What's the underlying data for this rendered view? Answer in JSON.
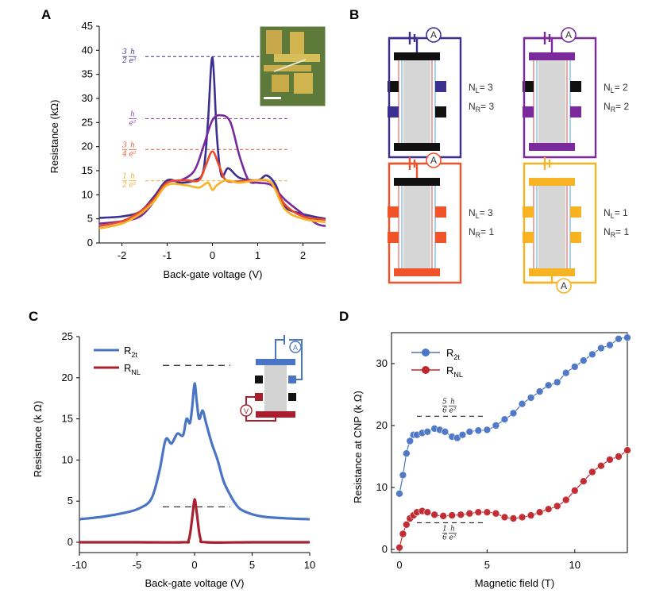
{
  "panels": {
    "A": {
      "label": "A",
      "xlabel": "Back-gate voltage (V)",
      "ylabel": "Resistance (kΩ)",
      "xlim": [
        -2.5,
        2.5
      ],
      "ylim": [
        0,
        45
      ],
      "xticks": [
        "-2",
        "-1",
        "0",
        "1",
        "2"
      ],
      "yticks": [
        "0",
        "5",
        "10",
        "15",
        "20",
        "25",
        "30",
        "35",
        "40",
        "45"
      ],
      "fractions": [
        {
          "num": "3",
          "den": "2",
          "h": "h",
          "e2": "e²",
          "value": 38.7,
          "color": "#3b2f8f"
        },
        {
          "num": "",
          "den": "",
          "h": "h",
          "e2": "e²",
          "value": 25.8,
          "color": "#8e44ad"
        },
        {
          "num": "3",
          "den": "4",
          "h": "h",
          "e2": "e²",
          "value": 19.4,
          "color": "#e8542a"
        },
        {
          "num": "1",
          "den": "2",
          "h": "h",
          "e2": "e²",
          "value": 12.9,
          "color": "#f5a623"
        }
      ]
    },
    "B": {
      "label": "B",
      "devices": [
        {
          "color": "#3b2f8f",
          "meter": "A",
          "nl": "N",
          "nl_sub": "L",
          "nl_val": "= 3",
          "nr": "N",
          "nr_sub": "R",
          "nr_val": "= 3"
        },
        {
          "color": "#7a2a9a",
          "meter": "A",
          "nl": "N",
          "nl_sub": "L",
          "nl_val": "= 2",
          "nr": "N",
          "nr_sub": "R",
          "nr_val": "= 2"
        },
        {
          "color": "#f0522a",
          "meter": "A",
          "nl": "N",
          "nl_sub": "L",
          "nl_val": "= 3",
          "nr": "N",
          "nr_sub": "R",
          "nr_val": "= 1"
        },
        {
          "color": "#f7b324",
          "meter": "A",
          "nl": "N",
          "nl_sub": "L",
          "nl_val": "= 1",
          "nr": "N",
          "nr_sub": "R",
          "nr_val": "= 1"
        }
      ]
    },
    "C": {
      "label": "C",
      "xlabel": "Back-gate voltage (V)",
      "ylabel": "Resistance  (k Ω)",
      "xticks": [
        "-10",
        "-5",
        "0",
        "5",
        "10"
      ],
      "yticks": [
        "0",
        "5",
        "10",
        "15",
        "20",
        "25"
      ],
      "legend": [
        {
          "name": "R",
          "sub": "2t",
          "color": "#4a74c4"
        },
        {
          "name": "R",
          "sub": "NL",
          "color": "#a8202e"
        }
      ],
      "meters": [
        "A",
        "V"
      ]
    },
    "D": {
      "label": "D",
      "xlabel": "Magnetic field (T)",
      "ylabel": "Resistance at CNP  (k Ω)",
      "xticks": [
        "0",
        "5",
        "10"
      ],
      "yticks": [
        "0",
        "10",
        "20",
        "30"
      ],
      "legend": [
        {
          "name": "R",
          "sub": "2t",
          "color": "#4a74c4"
        },
        {
          "name": "R",
          "sub": "NL",
          "color": "#c0262e"
        }
      ],
      "fractions": [
        {
          "num": "5",
          "den": "6",
          "h": "h",
          "e2": "e²",
          "value": 21.5
        },
        {
          "num": "1",
          "den": "6",
          "h": "h",
          "e2": "e²",
          "value": 4.3
        }
      ]
    }
  },
  "chart_data": [
    {
      "type": "line",
      "panel": "A",
      "xlabel": "Back-gate voltage (V)",
      "ylabel": "Resistance (kΩ)",
      "xlim": [
        -2.5,
        2.5
      ],
      "ylim": [
        0,
        45
      ],
      "series": [
        {
          "color": "#3b2f8f",
          "x": [
            -2.5,
            -2.0,
            -1.6,
            -1.3,
            -1.0,
            -0.7,
            -0.4,
            -0.2,
            -0.1,
            0.0,
            0.1,
            0.2,
            0.35,
            0.6,
            1.0,
            1.2,
            1.4,
            1.6,
            2.0,
            2.5
          ],
          "y": [
            5.2,
            5.5,
            6.5,
            9.5,
            13.0,
            12.5,
            13.0,
            15.0,
            25.0,
            38.5,
            22.0,
            14.0,
            15.5,
            13.5,
            13.0,
            14.0,
            12.0,
            7.5,
            6.0,
            5.0
          ]
        },
        {
          "color": "#7a2a9a",
          "x": [
            -2.5,
            -2.0,
            -1.6,
            -1.3,
            -1.0,
            -0.7,
            -0.4,
            -0.2,
            0.0,
            0.2,
            0.4,
            0.6,
            0.8,
            1.0,
            1.3,
            1.6,
            2.0,
            2.3,
            2.5
          ],
          "y": [
            4.0,
            4.5,
            5.5,
            8.5,
            12.5,
            13.0,
            15.0,
            20.0,
            25.5,
            26.5,
            25.0,
            18.0,
            13.0,
            12.5,
            12.0,
            9.0,
            6.0,
            4.0,
            3.5
          ]
        },
        {
          "color": "#ee4a2a",
          "x": [
            -2.5,
            -2.0,
            -1.6,
            -1.3,
            -1.0,
            -0.6,
            -0.3,
            -0.15,
            0.0,
            0.15,
            0.3,
            0.6,
            1.0,
            1.3,
            1.6,
            2.0,
            2.5
          ],
          "y": [
            3.5,
            4.5,
            6.5,
            9.0,
            12.5,
            13.0,
            13.0,
            16.0,
            19.0,
            16.0,
            13.0,
            12.8,
            13.0,
            12.5,
            8.0,
            5.5,
            4.8
          ]
        },
        {
          "color": "#f7b324",
          "x": [
            -2.5,
            -2.0,
            -1.6,
            -1.3,
            -1.0,
            -0.6,
            -0.3,
            -0.1,
            0.0,
            0.1,
            0.3,
            0.6,
            1.0,
            1.3,
            1.6,
            2.0,
            2.5
          ],
          "y": [
            3.0,
            4.0,
            6.0,
            8.5,
            12.0,
            12.0,
            11.5,
            12.5,
            11.0,
            12.0,
            13.0,
            12.5,
            13.0,
            12.5,
            7.0,
            5.0,
            4.3
          ]
        }
      ]
    },
    {
      "type": "line",
      "panel": "C",
      "xlabel": "Back-gate voltage (V)",
      "ylabel": "Resistance  (k Ω)",
      "xlim": [
        -10,
        10
      ],
      "ylim": [
        -1,
        25
      ],
      "series": [
        {
          "name": "R2t",
          "color": "#4a74c4",
          "x": [
            -10,
            -8,
            -6,
            -5,
            -4,
            -3.5,
            -3,
            -2.5,
            -2,
            -1.5,
            -1,
            -0.7,
            -0.4,
            -0.2,
            0,
            0.2,
            0.4,
            0.7,
            1,
            1.5,
            2,
            2.5,
            3,
            3.5,
            4,
            5,
            6,
            8,
            10
          ],
          "y": [
            2.8,
            3.1,
            3.6,
            4.0,
            4.8,
            6.2,
            9.0,
            12.5,
            12.0,
            13.2,
            13.0,
            15.0,
            14.5,
            16.5,
            19.3,
            17.0,
            15.0,
            16.0,
            14.5,
            12.0,
            10.0,
            7.5,
            6.0,
            4.8,
            4.0,
            3.4,
            3.1,
            2.9,
            2.8
          ]
        },
        {
          "name": "RNL",
          "color": "#a8202e",
          "x": [
            -10,
            -5,
            -1,
            -0.5,
            -0.2,
            0,
            0.2,
            0.5,
            1,
            5,
            10
          ],
          "y": [
            0,
            0,
            0,
            0.3,
            3.0,
            5.2,
            3.5,
            0.5,
            0,
            0,
            0
          ]
        }
      ],
      "guides": [
        21.5,
        4.3
      ]
    },
    {
      "type": "scatter",
      "panel": "D",
      "xlabel": "Magnetic field (T)",
      "ylabel": "Resistance at CNP  (k Ω)",
      "xlim": [
        -0.3,
        13
      ],
      "ylim": [
        0,
        35
      ],
      "series": [
        {
          "name": "R2t",
          "color": "#4a74c4",
          "x": [
            0,
            0.2,
            0.4,
            0.6,
            0.8,
            1.0,
            1.3,
            1.6,
            2.0,
            2.3,
            2.6,
            3.0,
            3.3,
            3.6,
            4.0,
            4.5,
            5.0,
            5.5,
            6.0,
            6.5,
            7.0,
            7.5,
            8.0,
            8.5,
            9.0,
            9.5,
            10.0,
            10.5,
            11.0,
            11.5,
            12.0,
            12.5,
            13.0
          ],
          "y": [
            9.0,
            12.0,
            15.5,
            17.5,
            18.5,
            18.5,
            18.8,
            19.0,
            19.5,
            19.3,
            19.0,
            18.2,
            18.0,
            18.5,
            19.0,
            19.2,
            19.3,
            20.0,
            21.0,
            22.0,
            23.5,
            24.5,
            25.5,
            26.5,
            27.0,
            28.5,
            29.5,
            30.5,
            31.5,
            32.5,
            33.0,
            34.0,
            34.2
          ]
        },
        {
          "name": "RNL",
          "color": "#c0262e",
          "x": [
            0,
            0.2,
            0.4,
            0.6,
            0.8,
            1.0,
            1.3,
            1.6,
            2.0,
            2.5,
            3.0,
            3.5,
            4.0,
            4.5,
            5.0,
            5.5,
            6.0,
            6.5,
            7.0,
            7.5,
            8.0,
            8.5,
            9.0,
            9.5,
            10.0,
            10.5,
            11.0,
            11.5,
            12.0,
            12.5,
            13.0
          ],
          "y": [
            0.3,
            2.5,
            4.0,
            5.0,
            5.5,
            6.0,
            6.2,
            6.0,
            5.6,
            5.4,
            5.5,
            5.6,
            5.8,
            6.0,
            6.0,
            5.8,
            5.2,
            5.0,
            5.2,
            5.5,
            6.0,
            6.5,
            7.0,
            8.0,
            9.5,
            11.0,
            12.5,
            13.5,
            14.5,
            15.0,
            16.0
          ]
        }
      ],
      "guides": [
        21.5,
        4.3
      ]
    }
  ]
}
